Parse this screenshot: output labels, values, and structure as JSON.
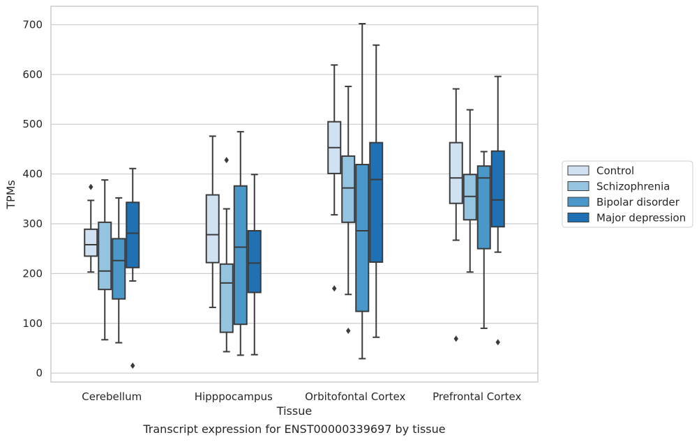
{
  "chart_data": {
    "type": "box",
    "xlabel": "Tissue",
    "ylabel": "TPMs",
    "caption": "Transcript expression for ENST00000339697 by tissue",
    "ylim": [
      -18,
      737
    ],
    "yticks": [
      0,
      100,
      200,
      300,
      400,
      500,
      600,
      700
    ],
    "grid": "horizontal",
    "legend_position": "right",
    "categories": [
      "Cerebellum",
      "Hipppocampus",
      "Orbitofontal Cortex",
      "Prefrontal Cortex"
    ],
    "series": [
      {
        "name": "Control",
        "color": "#d0e1f2",
        "boxes": [
          {
            "whisker_low": 203,
            "q1": 235,
            "median": 258,
            "q3": 289,
            "whisker_high": 347,
            "outliers": [
              374
            ]
          },
          {
            "whisker_low": 132,
            "q1": 222,
            "median": 278,
            "q3": 358,
            "whisker_high": 476,
            "outliers": []
          },
          {
            "whisker_low": 318,
            "q1": 401,
            "median": 453,
            "q3": 505,
            "whisker_high": 619,
            "outliers": [
              170
            ]
          },
          {
            "whisker_low": 267,
            "q1": 341,
            "median": 392,
            "q3": 463,
            "whisker_high": 571,
            "outliers": [
              69
            ]
          }
        ]
      },
      {
        "name": "Schizophrenia",
        "color": "#94c4df",
        "boxes": [
          {
            "whisker_low": 67,
            "q1": 168,
            "median": 205,
            "q3": 303,
            "whisker_high": 388,
            "outliers": []
          },
          {
            "whisker_low": 43,
            "q1": 82,
            "median": 181,
            "q3": 219,
            "whisker_high": 330,
            "outliers": [
              428
            ]
          },
          {
            "whisker_low": 158,
            "q1": 303,
            "median": 372,
            "q3": 436,
            "whisker_high": 576,
            "outliers": [
              85
            ]
          },
          {
            "whisker_low": 203,
            "q1": 308,
            "median": 355,
            "q3": 399,
            "whisker_high": 529,
            "outliers": []
          }
        ]
      },
      {
        "name": "Bipolar disorder",
        "color": "#4a98c9",
        "boxes": [
          {
            "whisker_low": 61,
            "q1": 149,
            "median": 226,
            "q3": 270,
            "whisker_high": 352,
            "outliers": []
          },
          {
            "whisker_low": 36,
            "q1": 98,
            "median": 253,
            "q3": 376,
            "whisker_high": 485,
            "outliers": []
          },
          {
            "whisker_low": 29,
            "q1": 124,
            "median": 286,
            "q3": 419,
            "whisker_high": 702,
            "outliers": []
          },
          {
            "whisker_low": 90,
            "q1": 250,
            "median": 392,
            "q3": 416,
            "whisker_high": 445,
            "outliers": []
          }
        ]
      },
      {
        "name": "Major depression",
        "color": "#2070b4",
        "boxes": [
          {
            "whisker_low": 185,
            "q1": 212,
            "median": 281,
            "q3": 343,
            "whisker_high": 411,
            "outliers": [
              15
            ]
          },
          {
            "whisker_low": 37,
            "q1": 162,
            "median": 221,
            "q3": 286,
            "whisker_high": 399,
            "outliers": []
          },
          {
            "whisker_low": 72,
            "q1": 223,
            "median": 389,
            "q3": 463,
            "whisker_high": 659,
            "outliers": []
          },
          {
            "whisker_low": 243,
            "q1": 294,
            "median": 348,
            "q3": 446,
            "whisker_high": 596,
            "outliers": [
              62
            ]
          }
        ]
      }
    ]
  }
}
